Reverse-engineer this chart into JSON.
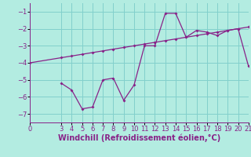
{
  "xlabel": "Windchill (Refroidissement éolien,°C)",
  "bg_color": "#b3ece1",
  "grid_color": "#82d0cc",
  "line_color": "#882288",
  "xlim": [
    0,
    21
  ],
  "ylim": [
    -7.5,
    -0.5
  ],
  "yticks": [
    -7,
    -6,
    -5,
    -4,
    -3,
    -2,
    -1
  ],
  "xticks": [
    0,
    3,
    4,
    5,
    6,
    7,
    8,
    9,
    10,
    11,
    12,
    13,
    14,
    15,
    16,
    17,
    18,
    19,
    20,
    21
  ],
  "line1_x": [
    3,
    4,
    5,
    6,
    7,
    8,
    9,
    10,
    11,
    12,
    13,
    14,
    15,
    16,
    17,
    18,
    19,
    20,
    21
  ],
  "line1_y": [
    -5.2,
    -5.6,
    -6.7,
    -6.6,
    -5.0,
    -4.9,
    -6.2,
    -5.3,
    -3.0,
    -3.0,
    -1.1,
    -1.1,
    -2.5,
    -2.1,
    -2.2,
    -2.4,
    -2.1,
    -2.0,
    -4.2
  ],
  "line2_x": [
    0,
    3,
    4,
    5,
    6,
    7,
    8,
    9,
    10,
    11,
    12,
    13,
    14,
    15,
    16,
    17,
    18,
    19,
    20,
    21
  ],
  "line2_y": [
    -4.0,
    -3.7,
    -3.6,
    -3.5,
    -3.4,
    -3.3,
    -3.2,
    -3.1,
    -3.0,
    -2.9,
    -2.8,
    -2.7,
    -2.6,
    -2.5,
    -2.4,
    -2.3,
    -2.2,
    -2.1,
    -2.0,
    -1.9
  ],
  "marker_size": 2.0,
  "line_width": 0.9,
  "xlabel_fontsize": 7.0,
  "tick_fontsize": 6.0
}
